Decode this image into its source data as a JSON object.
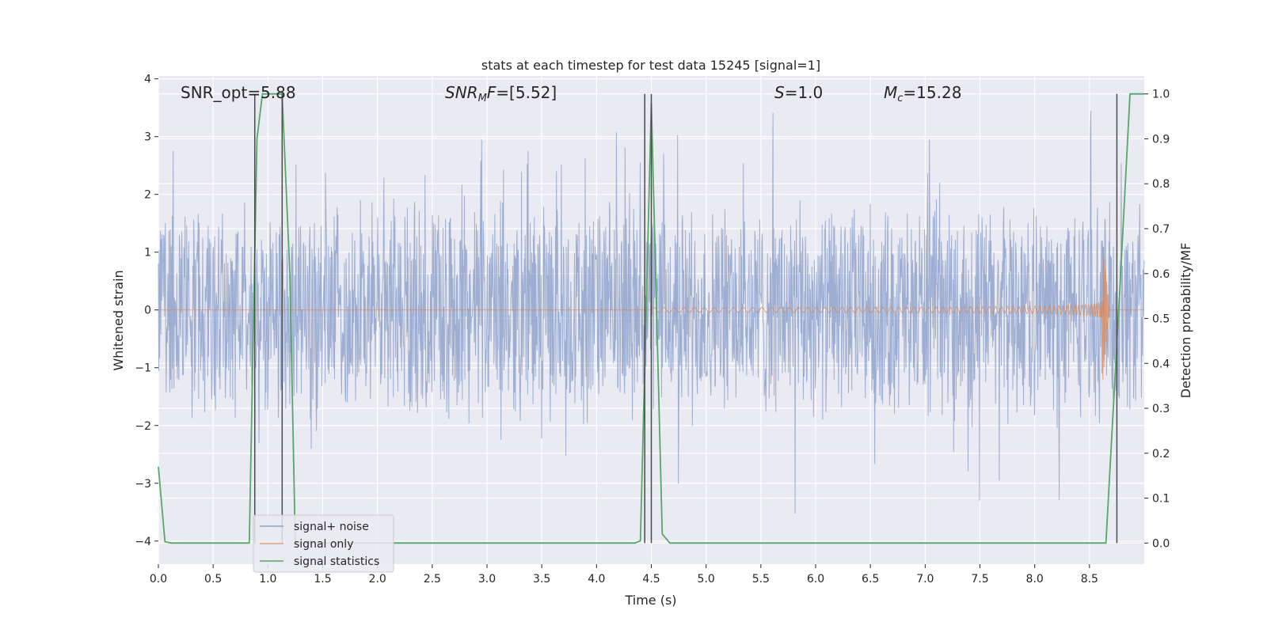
{
  "chart_data": {
    "type": "line",
    "title": "stats at each timestep for test data 15245 [signal=1]",
    "xlabel": "Time (s)",
    "ylabel_left": "Whitened strain",
    "ylabel_right": "Detection probability/MF",
    "xlim": [
      0.0,
      9.0
    ],
    "ylim_left": [
      -4.4,
      4.05
    ],
    "ylim_right": [
      -0.047,
      1.04
    ],
    "x_ticks": [
      "0.0",
      "0.5",
      "1.0",
      "1.5",
      "2.0",
      "2.5",
      "3.0",
      "3.5",
      "4.0",
      "4.5",
      "5.0",
      "5.5",
      "6.0",
      "6.5",
      "7.0",
      "7.5",
      "8.0",
      "8.5"
    ],
    "y_left_ticks": [
      "−4",
      "−3",
      "−2",
      "−1",
      "0",
      "1",
      "2",
      "3",
      "4"
    ],
    "y_right_ticks": [
      "0.0",
      "0.1",
      "0.2",
      "0.3",
      "0.4",
      "0.5",
      "0.6",
      "0.7",
      "0.8",
      "0.9",
      "1.0"
    ],
    "grid": true,
    "legend_position": "lower-left",
    "annotations": [
      {
        "text": "SNR_opt=5.88",
        "x": 0.2
      },
      {
        "text": "SNR_MF=[5.52]",
        "x": 2.6
      },
      {
        "text": "S=1.0",
        "x": 5.6
      },
      {
        "text": "M_c=15.28",
        "x": 6.6
      }
    ],
    "vertical_lines_x": [
      0.88,
      1.13,
      4.44,
      4.5,
      8.75
    ],
    "series": [
      {
        "name": "signal+ noise",
        "color": "#8fa3cc",
        "envelope": {
          "t_start": 0.0,
          "t_end": 9.0,
          "typical_max": 2.0,
          "typical_min": -2.0,
          "peak_max": 3.7,
          "peak_min": -3.55
        }
      },
      {
        "name": "signal only",
        "color": "#dd8452",
        "chirp": {
          "t_start": 4.5,
          "t_peak": 8.62,
          "t_end": 8.68,
          "peak_amplitude": 1.3
        }
      },
      {
        "name": "signal statistics",
        "color": "#55a868",
        "axis": "right",
        "points": [
          [
            0.0,
            0.17
          ],
          [
            0.06,
            0.003
          ],
          [
            0.12,
            0.0
          ],
          [
            0.8,
            0.0
          ],
          [
            0.83,
            0.0
          ],
          [
            0.9,
            0.9
          ],
          [
            0.95,
            1.0
          ],
          [
            1.13,
            1.0
          ],
          [
            1.2,
            0.6
          ],
          [
            1.25,
            0.0
          ],
          [
            4.35,
            0.0
          ],
          [
            4.4,
            0.005
          ],
          [
            4.5,
            0.98
          ],
          [
            4.6,
            0.02
          ],
          [
            4.67,
            0.0
          ],
          [
            8.65,
            0.0
          ],
          [
            8.78,
            0.58
          ],
          [
            8.87,
            1.0
          ],
          [
            9.0,
            1.0
          ]
        ]
      }
    ]
  }
}
